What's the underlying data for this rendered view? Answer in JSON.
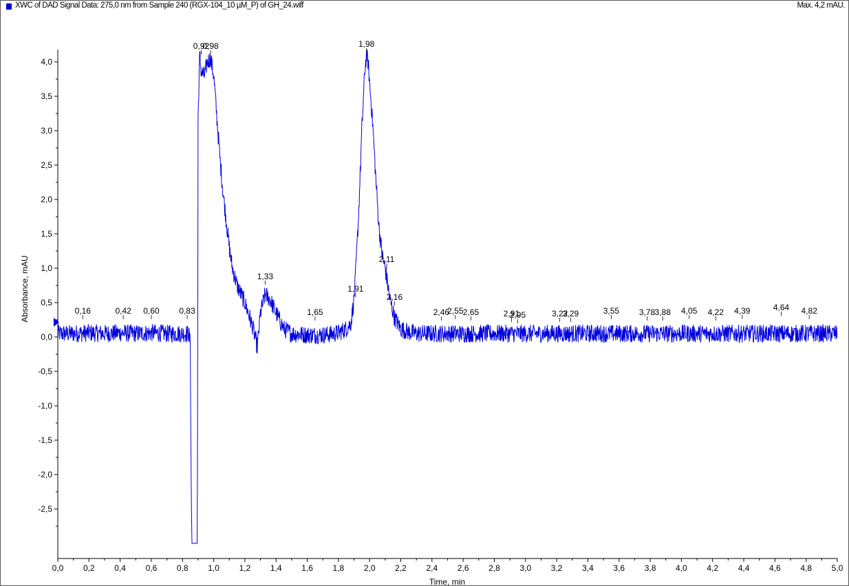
{
  "header": {
    "title": "XWC of DAD Signal Data: 275,0 nm from Sample 240 (RGX-104_10 µM_P) of GH_24.wiff",
    "max_label": "Max. 4,2 mAU."
  },
  "colors": {
    "trace": "#0000dd",
    "axis": "#000000",
    "frame": "#555555"
  },
  "chart_data": {
    "type": "line",
    "title": "XWC of DAD Signal Data: 275,0 nm from Sample 240 (RGX-104_10 µM_P) of GH_24.wiff",
    "xlabel": "Time, min",
    "ylabel": "Absorbance, mAU",
    "xlim": [
      0.0,
      5.0
    ],
    "ylim": [
      -3.0,
      4.2
    ],
    "grid": false,
    "x_ticks": [
      "0,0",
      "0,2",
      "0,4",
      "0,6",
      "0,8",
      "1,0",
      "1,2",
      "1,4",
      "1,6",
      "1,8",
      "2,0",
      "2,2",
      "2,4",
      "2,6",
      "2,8",
      "3,0",
      "3,2",
      "3,4",
      "3,6",
      "3,8",
      "4,0",
      "4,2",
      "4,4",
      "4,6",
      "4,8",
      "5,0"
    ],
    "y_ticks": [
      "4,0",
      "3,5",
      "3,0",
      "2,5",
      "2,0",
      "1,5",
      "1,0",
      "0,5",
      "0,0",
      "-0,5",
      "-1,0",
      "-1,5",
      "-2,0",
      "-2,5"
    ],
    "series": [
      {
        "x": [
          0.0,
          0.1,
          0.2,
          0.3,
          0.4,
          0.5,
          0.6,
          0.7,
          0.8,
          0.84,
          0.85,
          0.855,
          0.86,
          0.87,
          0.88,
          0.895,
          0.9,
          0.91,
          0.92,
          0.94,
          0.96,
          0.98,
          1.0,
          1.02,
          1.04,
          1.06,
          1.08,
          1.1,
          1.12,
          1.15,
          1.2,
          1.25,
          1.28,
          1.3,
          1.33,
          1.36,
          1.4,
          1.45,
          1.5,
          1.55,
          1.6,
          1.65,
          1.7,
          1.75,
          1.8,
          1.85,
          1.88,
          1.9,
          1.91,
          1.93,
          1.95,
          1.97,
          1.98,
          1.99,
          2.0,
          2.02,
          2.04,
          2.06,
          2.08,
          2.1,
          2.11,
          2.13,
          2.16,
          2.2,
          2.25,
          2.3,
          2.4,
          2.5,
          2.6,
          2.7,
          2.8,
          2.9,
          3.0,
          3.1,
          3.2,
          3.3,
          3.4,
          3.5,
          3.6,
          3.7,
          3.8,
          3.9,
          4.0,
          4.1,
          4.2,
          4.3,
          4.4,
          4.5,
          4.6,
          4.7,
          4.8,
          4.9,
          5.0
        ],
        "y": [
          0.05,
          0.05,
          0.06,
          0.05,
          0.06,
          0.05,
          0.06,
          0.05,
          0.05,
          0.05,
          -0.1,
          -2.0,
          -3.0,
          -3.0,
          -3.0,
          -3.0,
          3.2,
          4.1,
          3.85,
          3.8,
          4.0,
          4.05,
          3.8,
          3.2,
          2.6,
          2.1,
          1.7,
          1.3,
          1.0,
          0.75,
          0.5,
          0.15,
          -0.15,
          0.35,
          0.62,
          0.55,
          0.35,
          0.12,
          0.05,
          0.04,
          0.03,
          0.03,
          0.03,
          0.04,
          0.06,
          0.12,
          0.2,
          0.55,
          0.9,
          1.8,
          3.0,
          3.9,
          4.1,
          4.0,
          3.7,
          3.1,
          2.3,
          1.6,
          1.2,
          1.0,
          0.85,
          0.55,
          0.28,
          0.12,
          0.07,
          0.05,
          0.05,
          0.05,
          0.05,
          0.05,
          0.05,
          0.05,
          0.05,
          0.05,
          0.05,
          0.05,
          0.05,
          0.05,
          0.05,
          0.05,
          0.05,
          0.05,
          0.05,
          0.05,
          0.05,
          0.05,
          0.05,
          0.05,
          0.05,
          0.05,
          0.05,
          0.05,
          0.05
        ]
      }
    ],
    "peak_labels": [
      {
        "text": "0,16",
        "x": 0.16,
        "y": 0.3
      },
      {
        "text": "0,42",
        "x": 0.42,
        "y": 0.3
      },
      {
        "text": "0,60",
        "x": 0.6,
        "y": 0.3
      },
      {
        "text": "0,83",
        "x": 0.83,
        "y": 0.3
      },
      {
        "text": "0,92",
        "x": 0.92,
        "y": 4.15
      },
      {
        "text": "0,98",
        "x": 0.98,
        "y": 4.15
      },
      {
        "text": "1,33",
        "x": 1.33,
        "y": 0.8
      },
      {
        "text": "1,65",
        "x": 1.65,
        "y": 0.28
      },
      {
        "text": "1,91",
        "x": 1.91,
        "y": 0.62
      },
      {
        "text": "1,98",
        "x": 1.98,
        "y": 4.18
      },
      {
        "text": "2,11",
        "x": 2.11,
        "y": 1.05
      },
      {
        "text": "2,16",
        "x": 2.16,
        "y": 0.5
      },
      {
        "text": "2,46",
        "x": 2.46,
        "y": 0.28
      },
      {
        "text": "2,55",
        "x": 2.55,
        "y": 0.3
      },
      {
        "text": "2,65",
        "x": 2.65,
        "y": 0.28
      },
      {
        "text": "2,91",
        "x": 2.91,
        "y": 0.26
      },
      {
        "text": "2,95",
        "x": 2.95,
        "y": 0.24
      },
      {
        "text": "3,22",
        "x": 3.22,
        "y": 0.26
      },
      {
        "text": "3,29",
        "x": 3.29,
        "y": 0.26
      },
      {
        "text": "3,55",
        "x": 3.55,
        "y": 0.3
      },
      {
        "text": "3,78",
        "x": 3.78,
        "y": 0.28
      },
      {
        "text": "3,88",
        "x": 3.88,
        "y": 0.28
      },
      {
        "text": "4,05",
        "x": 4.05,
        "y": 0.3
      },
      {
        "text": "4,22",
        "x": 4.22,
        "y": 0.28
      },
      {
        "text": "4,39",
        "x": 4.39,
        "y": 0.3
      },
      {
        "text": "4,64",
        "x": 4.64,
        "y": 0.35
      },
      {
        "text": "4,82",
        "x": 4.82,
        "y": 0.3
      }
    ]
  }
}
